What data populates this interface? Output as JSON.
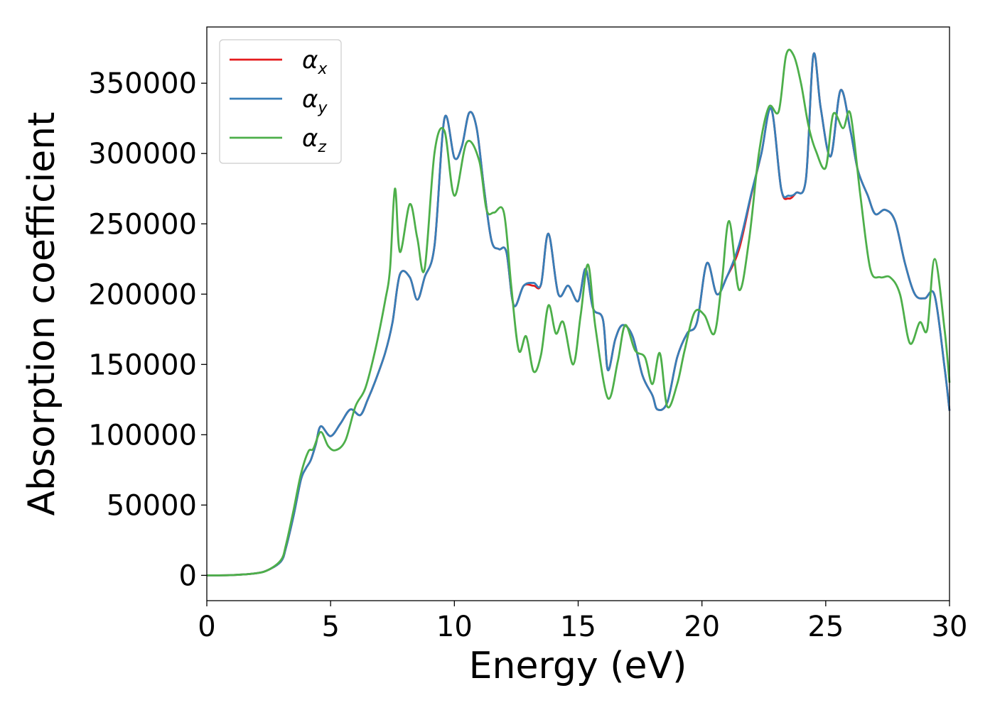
{
  "chart_data": {
    "type": "line",
    "title": "",
    "xlabel": "Energy (eV)",
    "ylabel": "Absorption coefficient",
    "xlim": [
      0,
      30
    ],
    "ylim": [
      -18000,
      390000
    ],
    "xticks": [
      0,
      5,
      10,
      15,
      20,
      25,
      30
    ],
    "xtick_labels": [
      "0",
      "5",
      "10",
      "15",
      "20",
      "25",
      "30"
    ],
    "yticks": [
      0,
      50000,
      100000,
      150000,
      200000,
      250000,
      300000,
      350000
    ],
    "ytick_labels": [
      "0",
      "50000",
      "100000",
      "150000",
      "200000",
      "250000",
      "300000",
      "350000"
    ],
    "grid": false,
    "legend_position": "top-left",
    "series": [
      {
        "name": "α_x",
        "symbol": "α",
        "subscript": "x",
        "color": "#e41a1c",
        "x": [
          0,
          1,
          2,
          2.5,
          3,
          3.2,
          3.5,
          3.8,
          4.0,
          4.2,
          4.4,
          4.6,
          5.0,
          5.4,
          5.8,
          6.2,
          6.5,
          6.8,
          7.2,
          7.5,
          7.8,
          8.2,
          8.5,
          8.8,
          9.2,
          9.6,
          10.0,
          10.3,
          10.6,
          10.9,
          11.2,
          11.5,
          11.8,
          12.1,
          12.4,
          12.8,
          13.2,
          13.5,
          13.8,
          14.2,
          14.6,
          15.0,
          15.3,
          15.6,
          16.0,
          16.2,
          16.5,
          16.8,
          17.2,
          17.6,
          18.0,
          18.2,
          18.6,
          19.0,
          19.4,
          19.8,
          20.2,
          20.6,
          21.0,
          21.5,
          22.0,
          22.4,
          22.8,
          23.2,
          23.5,
          23.8,
          24.2,
          24.5,
          24.8,
          25.2,
          25.6,
          26.0,
          26.3,
          26.7,
          27.0,
          27.4,
          27.8,
          28.2,
          28.6,
          29.0,
          29.4,
          29.8,
          30.0
        ],
        "y": [
          0,
          200,
          1500,
          4000,
          10000,
          20000,
          42000,
          68000,
          76000,
          82000,
          93000,
          106000,
          99000,
          108000,
          118000,
          114000,
          125000,
          138000,
          158000,
          180000,
          214000,
          212000,
          196000,
          212000,
          235000,
          325000,
          297000,
          305000,
          329000,
          318000,
          275000,
          238000,
          232000,
          230000,
          192000,
          206000,
          206000,
          207000,
          243000,
          200000,
          206000,
          195000,
          218000,
          190000,
          182000,
          146000,
          168000,
          178000,
          170000,
          142000,
          128000,
          118000,
          123000,
          155000,
          172000,
          180000,
          222000,
          200000,
          212000,
          232000,
          271000,
          300000,
          332000,
          275000,
          268000,
          272000,
          282000,
          370000,
          332000,
          298000,
          345000,
          316000,
          288000,
          270000,
          257000,
          260000,
          252000,
          222000,
          200000,
          197000,
          199000,
          148000,
          117000
        ]
      },
      {
        "name": "α_y",
        "symbol": "α",
        "subscript": "y",
        "color": "#377eb8",
        "x": [
          0,
          1,
          2,
          2.5,
          3,
          3.2,
          3.5,
          3.8,
          4.0,
          4.2,
          4.4,
          4.6,
          5.0,
          5.4,
          5.8,
          6.2,
          6.5,
          6.8,
          7.2,
          7.5,
          7.8,
          8.2,
          8.5,
          8.8,
          9.2,
          9.6,
          10.0,
          10.3,
          10.6,
          10.9,
          11.2,
          11.5,
          11.8,
          12.1,
          12.4,
          12.8,
          13.2,
          13.5,
          13.8,
          14.2,
          14.6,
          15.0,
          15.3,
          15.6,
          16.0,
          16.2,
          16.5,
          16.8,
          17.2,
          17.6,
          18.0,
          18.2,
          18.6,
          19.0,
          19.4,
          19.8,
          20.2,
          20.6,
          21.0,
          21.5,
          22.0,
          22.4,
          22.8,
          23.2,
          23.5,
          23.8,
          24.2,
          24.5,
          24.8,
          25.2,
          25.6,
          26.0,
          26.3,
          26.7,
          27.0,
          27.4,
          27.8,
          28.2,
          28.6,
          29.0,
          29.4,
          29.8,
          30.0
        ],
        "y": [
          0,
          200,
          1500,
          4000,
          10000,
          20000,
          42000,
          68000,
          76000,
          82000,
          93000,
          106000,
          99000,
          108000,
          118000,
          114000,
          125000,
          138000,
          158000,
          180000,
          214000,
          212000,
          196000,
          212000,
          235000,
          325000,
          297000,
          305000,
          329000,
          318000,
          275000,
          238000,
          232000,
          230000,
          192000,
          206000,
          208000,
          207000,
          243000,
          200000,
          206000,
          195000,
          218000,
          190000,
          182000,
          146000,
          168000,
          178000,
          170000,
          142000,
          128000,
          118000,
          123000,
          155000,
          172000,
          180000,
          222000,
          200000,
          212000,
          235000,
          272000,
          300000,
          332000,
          275000,
          270000,
          272000,
          282000,
          370000,
          332000,
          298000,
          345000,
          316000,
          288000,
          270000,
          257000,
          260000,
          252000,
          222000,
          200000,
          197000,
          199000,
          148000,
          117000
        ]
      },
      {
        "name": "α_z",
        "symbol": "α",
        "subscript": "z",
        "color": "#4daf4a",
        "x": [
          0,
          1,
          2,
          2.5,
          3,
          3.2,
          3.5,
          3.8,
          4.1,
          4.3,
          4.6,
          4.9,
          5.2,
          5.6,
          6.0,
          6.4,
          6.8,
          7.2,
          7.4,
          7.6,
          7.8,
          8.2,
          8.5,
          8.8,
          9.2,
          9.6,
          10.0,
          10.5,
          11.0,
          11.3,
          11.6,
          12.0,
          12.3,
          12.6,
          12.9,
          13.2,
          13.5,
          13.8,
          14.1,
          14.4,
          14.8,
          15.1,
          15.4,
          15.7,
          16.2,
          16.6,
          16.9,
          17.3,
          17.7,
          18.0,
          18.3,
          18.6,
          19.0,
          19.3,
          19.7,
          20.1,
          20.5,
          20.8,
          21.1,
          21.5,
          21.9,
          22.3,
          22.7,
          23.1,
          23.4,
          23.7,
          24.0,
          24.3,
          24.6,
          25.0,
          25.3,
          25.7,
          26.0,
          26.4,
          26.8,
          27.2,
          27.6,
          28.0,
          28.4,
          28.8,
          29.1,
          29.4,
          29.8,
          30.0
        ],
        "y": [
          0,
          200,
          1500,
          4000,
          11000,
          22000,
          46000,
          72000,
          88000,
          90000,
          102000,
          92000,
          89000,
          96000,
          120000,
          133000,
          160000,
          195000,
          218000,
          275000,
          230000,
          264000,
          240000,
          218000,
          301000,
          316000,
          270000,
          308000,
          295000,
          260000,
          258000,
          258000,
          205000,
          160000,
          170000,
          145000,
          157000,
          192000,
          172000,
          180000,
          150000,
          185000,
          221000,
          176000,
          126000,
          152000,
          178000,
          160000,
          155000,
          136000,
          158000,
          120000,
          136000,
          160000,
          187000,
          185000,
          172000,
          208000,
          252000,
          203000,
          238000,
          300000,
          333000,
          330000,
          370000,
          370000,
          350000,
          320000,
          302000,
          290000,
          328000,
          318000,
          328000,
          270000,
          218000,
          212000,
          212000,
          200000,
          165000,
          180000,
          175000,
          225000,
          175000,
          137000
        ]
      }
    ]
  }
}
